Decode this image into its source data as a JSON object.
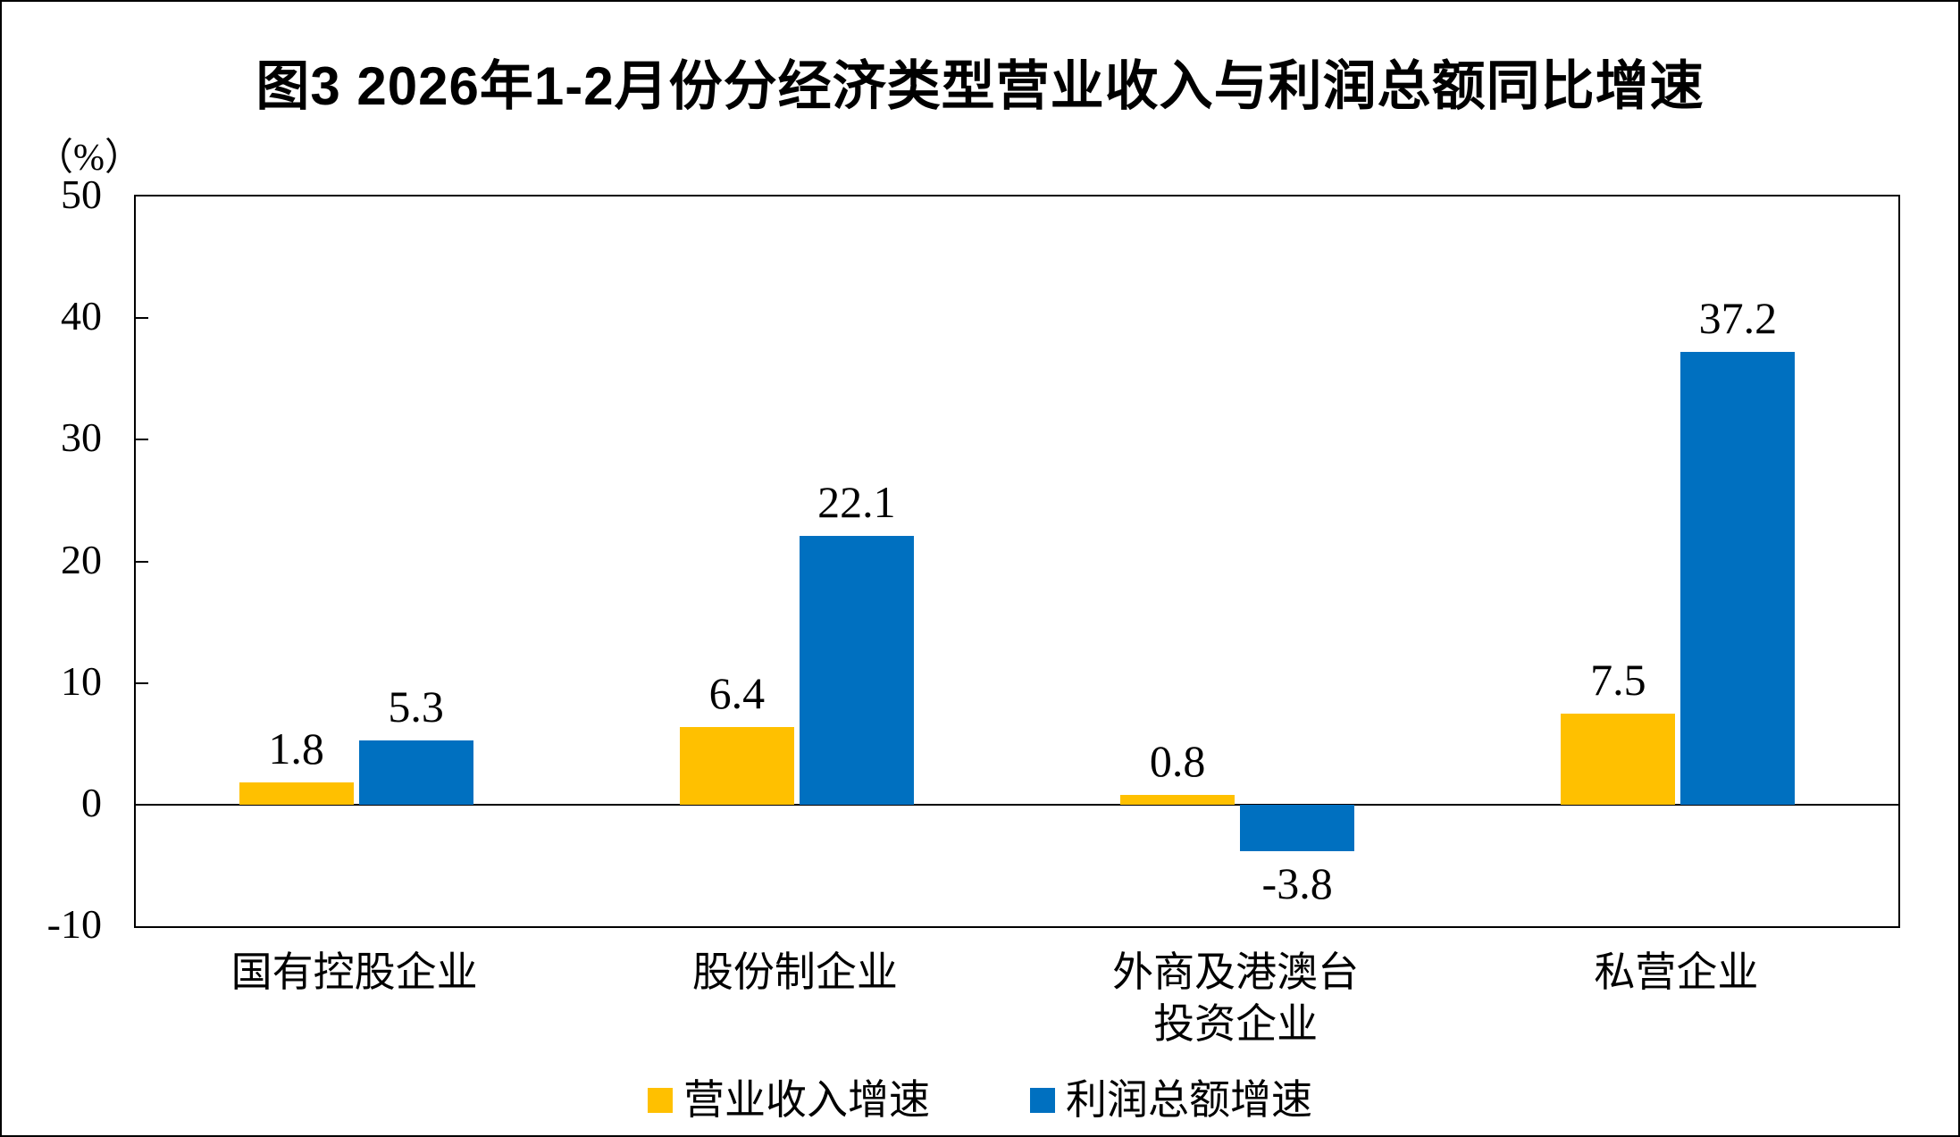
{
  "chart_data": {
    "type": "bar",
    "title": "图3 2026年1-2月份分经济类型营业收入与利润总额同比增速",
    "ylabel": "（%）",
    "categories": [
      "国有控股企业",
      "股份制企业",
      "外商及港澳台投资企业",
      "私营企业"
    ],
    "categories_display": [
      "国有控股企业",
      "股份制企业",
      "外商及港澳台\n投资企业",
      "私营企业"
    ],
    "series": [
      {
        "name": "营业收入增速",
        "color": "#FFC000",
        "values": [
          1.8,
          6.4,
          0.8,
          7.5
        ]
      },
      {
        "name": "利润总额增速",
        "color": "#0070C0",
        "values": [
          5.3,
          22.1,
          -3.8,
          37.2
        ]
      }
    ],
    "value_labels": [
      [
        "1.8",
        "6.4",
        "0.8",
        "7.5"
      ],
      [
        "5.3",
        "22.1",
        "-3.8",
        "37.2"
      ]
    ],
    "ylim": [
      -10,
      50
    ],
    "yticks": [
      50,
      40,
      30,
      20,
      10,
      0,
      -10
    ],
    "grid": false,
    "zero_line": true,
    "legend_position": "bottom"
  },
  "colors": {
    "background": "#FFFFFF",
    "axis": "#000000",
    "text": "#000000"
  }
}
